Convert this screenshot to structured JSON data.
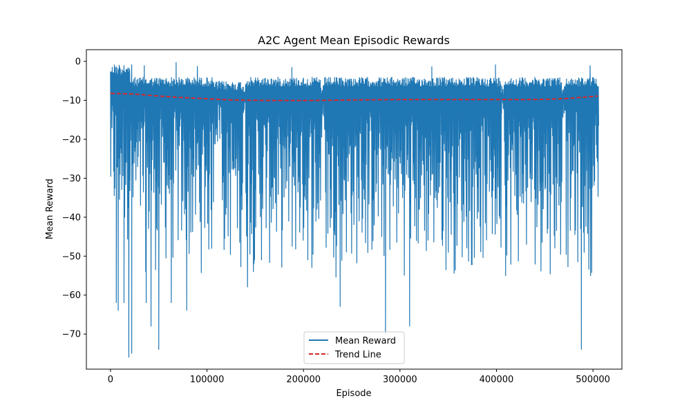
{
  "chart_data": {
    "type": "line",
    "title": "A2C Agent Mean Episodic Rewards",
    "xlabel": "Episode",
    "ylabel": "Mean Reward",
    "xlim": [
      -25000,
      530000
    ],
    "ylim": [
      -79,
      3
    ],
    "xticks": [
      0,
      100000,
      200000,
      300000,
      400000,
      500000
    ],
    "xtick_labels": [
      "0",
      "100000",
      "200000",
      "300000",
      "400000",
      "500000"
    ],
    "yticks": [
      0,
      -10,
      -20,
      -30,
      -40,
      -50,
      -60,
      -70
    ],
    "ytick_labels": [
      "0",
      "−10",
      "−20",
      "−30",
      "−40",
      "−50",
      "−60",
      "−70"
    ],
    "grid": false,
    "legend_position": "lower center",
    "series": [
      {
        "name": "Mean Reward",
        "color": "#1f77b4",
        "style": "solid",
        "description_of_shape": "dense noisy band between roughly -4 and -57 per episode",
        "segments": [
          {
            "x_start": 0,
            "x_end": 20000,
            "upper": -1,
            "lower": -50
          },
          {
            "x_start": 20000,
            "x_end": 107000,
            "upper": -4,
            "lower": -56
          },
          {
            "x_start": 107000,
            "x_end": 115000,
            "upper": -5,
            "lower": -25
          },
          {
            "x_start": 115000,
            "x_end": 137000,
            "upper": -5,
            "lower": -55
          },
          {
            "x_start": 137000,
            "x_end": 140000,
            "upper": -6,
            "lower": -20
          },
          {
            "x_start": 140000,
            "x_end": 218000,
            "upper": -4,
            "lower": -56
          },
          {
            "x_start": 218000,
            "x_end": 222000,
            "upper": -6,
            "lower": -25
          },
          {
            "x_start": 222000,
            "x_end": 405000,
            "upper": -4,
            "lower": -56
          },
          {
            "x_start": 405000,
            "x_end": 408000,
            "upper": -6,
            "lower": -15
          },
          {
            "x_start": 408000,
            "x_end": 468000,
            "upper": -4,
            "lower": -56
          },
          {
            "x_start": 468000,
            "x_end": 472000,
            "upper": -6,
            "lower": -15
          },
          {
            "x_start": 472000,
            "x_end": 506000,
            "upper": -4,
            "lower": -56
          }
        ],
        "spikes_up": [
          {
            "x": 4000,
            "y": -0.8
          },
          {
            "x": 9000,
            "y": -0.9
          },
          {
            "x": 14000,
            "y": -1.0
          },
          {
            "x": 22000,
            "y": -0.8
          },
          {
            "x": 35000,
            "y": -1.0
          },
          {
            "x": 68000,
            "y": -0.2
          },
          {
            "x": 90000,
            "y": -1.2
          },
          {
            "x": 188000,
            "y": -1.5
          },
          {
            "x": 333000,
            "y": -1.3
          },
          {
            "x": 399000,
            "y": -0.8
          },
          {
            "x": 497000,
            "y": -1.0
          }
        ],
        "spikes_down": [
          {
            "x": 6000,
            "y": -62
          },
          {
            "x": 8000,
            "y": -64
          },
          {
            "x": 14000,
            "y": -62
          },
          {
            "x": 19000,
            "y": -76
          },
          {
            "x": 22000,
            "y": -75
          },
          {
            "x": 37000,
            "y": -62
          },
          {
            "x": 42000,
            "y": -68
          },
          {
            "x": 50000,
            "y": -74
          },
          {
            "x": 63000,
            "y": -62
          },
          {
            "x": 79000,
            "y": -64
          },
          {
            "x": 142000,
            "y": -58
          },
          {
            "x": 238000,
            "y": -63
          },
          {
            "x": 285000,
            "y": -70
          },
          {
            "x": 310000,
            "y": -68
          },
          {
            "x": 488000,
            "y": -74
          }
        ]
      },
      {
        "name": "Trend Line",
        "color": "#d62728",
        "style": "dashed",
        "points": [
          {
            "x": 0,
            "y": -8.2
          },
          {
            "x": 25000,
            "y": -8.4
          },
          {
            "x": 50000,
            "y": -8.9
          },
          {
            "x": 75000,
            "y": -9.3
          },
          {
            "x": 100000,
            "y": -9.6
          },
          {
            "x": 125000,
            "y": -9.9
          },
          {
            "x": 150000,
            "y": -10.0
          },
          {
            "x": 175000,
            "y": -10.05
          },
          {
            "x": 200000,
            "y": -10.05
          },
          {
            "x": 225000,
            "y": -10.0
          },
          {
            "x": 250000,
            "y": -9.9
          },
          {
            "x": 275000,
            "y": -9.85
          },
          {
            "x": 300000,
            "y": -9.8
          },
          {
            "x": 325000,
            "y": -9.8
          },
          {
            "x": 350000,
            "y": -9.8
          },
          {
            "x": 375000,
            "y": -9.8
          },
          {
            "x": 400000,
            "y": -9.8
          },
          {
            "x": 425000,
            "y": -9.8
          },
          {
            "x": 450000,
            "y": -9.75
          },
          {
            "x": 475000,
            "y": -9.5
          },
          {
            "x": 505000,
            "y": -8.9
          }
        ]
      }
    ]
  }
}
